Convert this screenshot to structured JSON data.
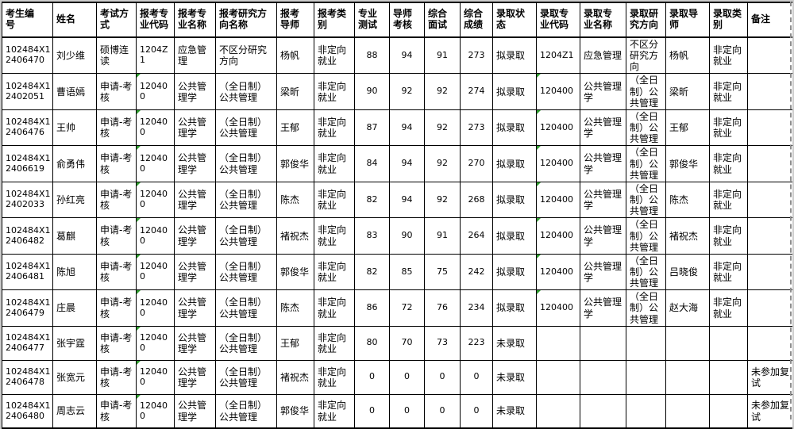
{
  "table": {
    "flag_color": "#2f9e2f",
    "columns": [
      {
        "key": "ksbh",
        "label": "考生编\n号"
      },
      {
        "key": "xm",
        "label": "姓名"
      },
      {
        "key": "ksfs",
        "label": "考试方\n式"
      },
      {
        "key": "bkzydm",
        "label": "报考专\n业代码"
      },
      {
        "key": "bkzymc",
        "label": "报考专\n业名称"
      },
      {
        "key": "bkyjfx",
        "label": "报考研究方\n向名称"
      },
      {
        "key": "bkds",
        "label": "报考\n导师"
      },
      {
        "key": "bklb",
        "label": "报考类\n别"
      },
      {
        "key": "zycs",
        "label": "专业\n测试"
      },
      {
        "key": "dskh",
        "label": "导师\n考核"
      },
      {
        "key": "zhms",
        "label": "综合\n面试"
      },
      {
        "key": "zhcj",
        "label": "综合\n成绩"
      },
      {
        "key": "lqzt",
        "label": "录取状\n态"
      },
      {
        "key": "lqzydm",
        "label": "录取专\n业代码"
      },
      {
        "key": "lqzymc",
        "label": "录取专\n业名称"
      },
      {
        "key": "lqyjfx",
        "label": "录取研\n究方向"
      },
      {
        "key": "lqds",
        "label": "录取导\n师"
      },
      {
        "key": "lqlb",
        "label": "录取类\n别"
      },
      {
        "key": "bz",
        "label": "备注"
      }
    ],
    "rows": [
      [
        "102484X12406470",
        "刘少维",
        "硕博连读",
        "1204Z1",
        "应急管理",
        "不区分研究方向",
        "杨帆",
        "非定向就业",
        "88",
        "94",
        "91",
        "273",
        "拟录取",
        "1204Z1",
        "应急管理",
        "不区分研究方向",
        "杨帆",
        "非定向就业",
        ""
      ],
      [
        "102484X12402051",
        "曹语嫣",
        "申请-考核",
        "120400",
        "公共管理学",
        "（全日制）公共管理",
        "梁昕",
        "非定向就业",
        "90",
        "92",
        "92",
        "274",
        "拟录取",
        "120400",
        "公共管理学",
        "（全日制）公共管理",
        "梁昕",
        "非定向就业",
        ""
      ],
      [
        "102484X12406476",
        "王帅",
        "申请-考核",
        "120400",
        "公共管理学",
        "（全日制）公共管理",
        "王郁",
        "非定向就业",
        "87",
        "94",
        "92",
        "273",
        "拟录取",
        "120400",
        "公共管理学",
        "（全日制）公共管理",
        "王郁",
        "非定向就业",
        ""
      ],
      [
        "102484X12406619",
        "俞勇伟",
        "申请-考核",
        "120400",
        "公共管理学",
        "（全日制）公共管理",
        "郭俊华",
        "非定向就业",
        "84",
        "94",
        "92",
        "270",
        "拟录取",
        "120400",
        "公共管理学",
        "（全日制）公共管理",
        "郭俊华",
        "非定向就业",
        ""
      ],
      [
        "102484X12402033",
        "孙红亮",
        "申请-考核",
        "120400",
        "公共管理学",
        "（全日制）公共管理",
        "陈杰",
        "非定向就业",
        "82",
        "94",
        "92",
        "268",
        "拟录取",
        "120400",
        "公共管理学",
        "（全日制）公共管理",
        "陈杰",
        "非定向就业",
        ""
      ],
      [
        "102484X12406482",
        "葛麒",
        "申请-考核",
        "120400",
        "公共管理学",
        "（全日制）公共管理",
        "褚祝杰",
        "非定向就业",
        "83",
        "90",
        "91",
        "264",
        "拟录取",
        "120400",
        "公共管理学",
        "（全日制）公共管理",
        "褚祝杰",
        "非定向就业",
        ""
      ],
      [
        "102484X12406481",
        "陈旭",
        "申请-考核",
        "120400",
        "公共管理学",
        "（全日制）公共管理",
        "郭俊华",
        "非定向就业",
        "82",
        "85",
        "75",
        "242",
        "拟录取",
        "120400",
        "公共管理学",
        "（全日制）公共管理",
        "吕晓俊",
        "非定向就业",
        ""
      ],
      [
        "102484X12406479",
        "庄晨",
        "申请-考核",
        "120400",
        "公共管理学",
        "（全日制）公共管理",
        "陈杰",
        "非定向就业",
        "86",
        "72",
        "76",
        "234",
        "拟录取",
        "120400",
        "公共管理学",
        "（全日制）公共管理",
        "赵大海",
        "非定向就业",
        ""
      ],
      [
        "102484X12406477",
        "张宇霆",
        "申请-考核",
        "120400",
        "公共管理学",
        "（全日制）公共管理",
        "王郁",
        "非定向就业",
        "80",
        "70",
        "73",
        "223",
        "未录取",
        "",
        "",
        "",
        "",
        "",
        ""
      ],
      [
        "102484X12406478",
        "张宽元",
        "申请-考核",
        "120400",
        "公共管理学",
        "（全日制）公共管理",
        "褚祝杰",
        "非定向就业",
        "0",
        "0",
        "0",
        "0",
        "未录取",
        "",
        "",
        "",
        "",
        "",
        "未参加复试"
      ],
      [
        "102484X12406480",
        "周志云",
        "申请-考核",
        "120400",
        "公共管理学",
        "（全日制）公共管理",
        "郭俊华",
        "非定向就业",
        "0",
        "0",
        "0",
        "0",
        "未录取",
        "",
        "",
        "",
        "",
        "",
        "未参加复试"
      ]
    ],
    "flagged_cells": [
      [
        1,
        3
      ],
      [
        2,
        3
      ],
      [
        3,
        3
      ],
      [
        4,
        3
      ],
      [
        5,
        3
      ],
      [
        6,
        3
      ],
      [
        7,
        3
      ],
      [
        8,
        3
      ],
      [
        9,
        3
      ],
      [
        10,
        3
      ],
      [
        1,
        13
      ],
      [
        2,
        13
      ],
      [
        3,
        13
      ],
      [
        4,
        13
      ],
      [
        5,
        13
      ],
      [
        6,
        13
      ],
      [
        7,
        13
      ]
    ]
  }
}
